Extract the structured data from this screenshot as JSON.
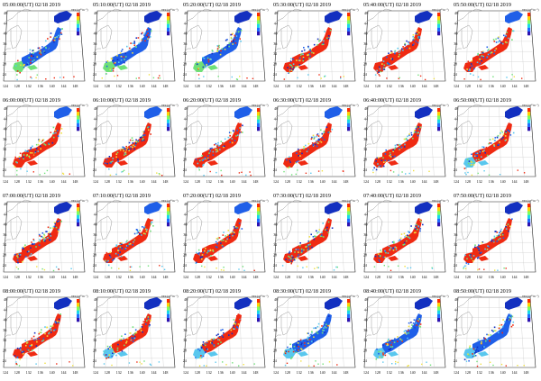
{
  "figure": {
    "date": "02/18 2019",
    "colorbar_label": "TEC(10¹⁶m⁻²)",
    "colorbar_colors": [
      "#ff2a00",
      "#ffd200",
      "#7dff5a",
      "#18d8e8",
      "#1f6bff",
      "#2d12b0"
    ],
    "lat_labels": [
      "48",
      "44",
      "40",
      "36",
      "32",
      "28",
      "24"
    ],
    "lon_labels": [
      "124",
      "128",
      "132",
      "136",
      "140",
      "144",
      "148"
    ],
    "land_colors": {
      "high": "#ef2a12",
      "mid": "#1f5fe8",
      "low": "#59c7ee",
      "dark": "#1330c0",
      "green": "#6fe078",
      "yellow": "#f0e040"
    }
  },
  "panels": [
    {
      "time": "05:00:00(UT)",
      "level": 0.1
    },
    {
      "time": "05:10:00(UT)",
      "level": 0.2
    },
    {
      "time": "05:20:00(UT)",
      "level": 0.25
    },
    {
      "time": "05:30:00(UT)",
      "level": 0.55
    },
    {
      "time": "05:40:00(UT)",
      "level": 0.6
    },
    {
      "time": "05:50:00(UT)",
      "level": 0.65
    },
    {
      "time": "06:00:00(UT)",
      "level": 0.7
    },
    {
      "time": "06:10:00(UT)",
      "level": 0.72
    },
    {
      "time": "06:20:00(UT)",
      "level": 0.75
    },
    {
      "time": "06:30:00(UT)",
      "level": 0.75
    },
    {
      "time": "06:40:00(UT)",
      "level": 0.55
    },
    {
      "time": "06:50:00(UT)",
      "level": 0.5
    },
    {
      "time": "07:00:00(UT)",
      "level": 0.6
    },
    {
      "time": "07:10:00(UT)",
      "level": 0.65
    },
    {
      "time": "07:20:00(UT)",
      "level": 0.65
    },
    {
      "time": "07:30:00(UT)",
      "level": 0.6
    },
    {
      "time": "07:40:00(UT)",
      "level": 0.6
    },
    {
      "time": "07:50:00(UT)",
      "level": 0.55
    },
    {
      "time": "08:00:00(UT)",
      "level": 0.55
    },
    {
      "time": "08:10:00(UT)",
      "level": 0.5
    },
    {
      "time": "08:20:00(UT)",
      "level": 0.5
    },
    {
      "time": "08:30:00(UT)",
      "level": 0.45
    },
    {
      "time": "08:40:00(UT)",
      "level": 0.4
    },
    {
      "time": "08:50:00(UT)",
      "level": 0.35
    }
  ]
}
